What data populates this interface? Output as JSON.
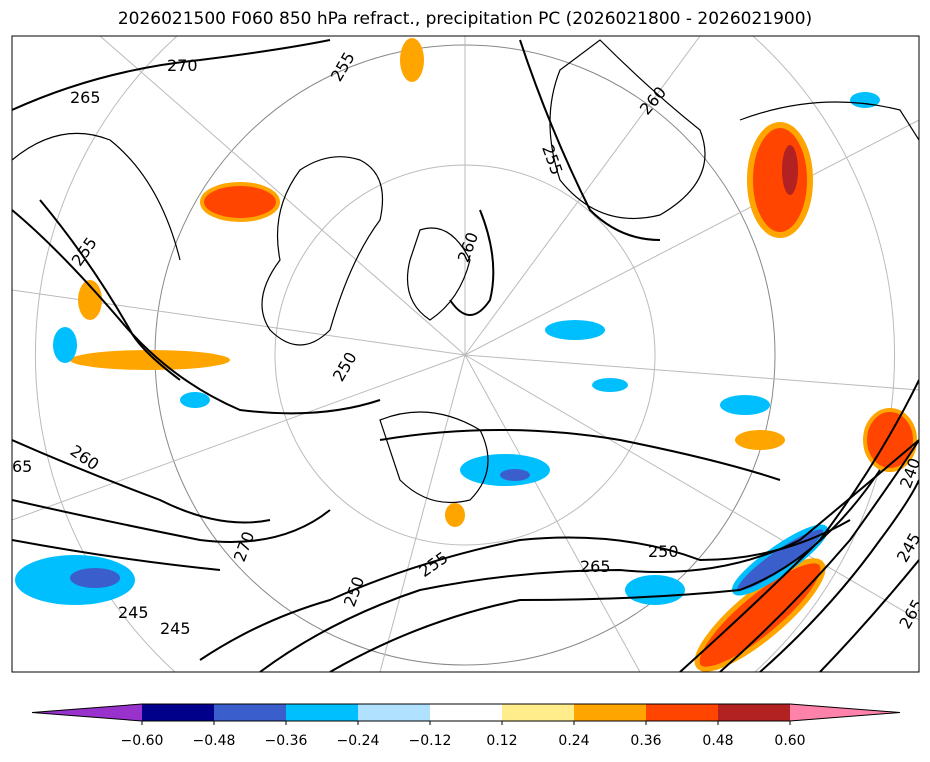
{
  "title": "2026021500 F060 850 hPa refract., precipitation PC (2026021800 - 2026021900)",
  "map": {
    "contour_labels": [
      "270",
      "265",
      "255",
      "255",
      "260",
      "260",
      "255",
      "260",
      "250",
      "255",
      "265",
      "250",
      "245",
      "240",
      "245",
      "265",
      "270",
      "65",
      "250",
      "245"
    ]
  },
  "colorbar": {
    "ticks": [
      "−0.60",
      "−0.48",
      "−0.36",
      "−0.24",
      "−0.12",
      "0.12",
      "0.24",
      "0.36",
      "0.48",
      "0.60"
    ],
    "colors": [
      "#9932cc",
      "#00008b",
      "#3a5fcd",
      "#00bfff",
      "#b0e2ff",
      "#ffffff",
      "#ffec8b",
      "#ffa500",
      "#ff4500",
      "#b22222",
      "#ff82ab"
    ]
  }
}
